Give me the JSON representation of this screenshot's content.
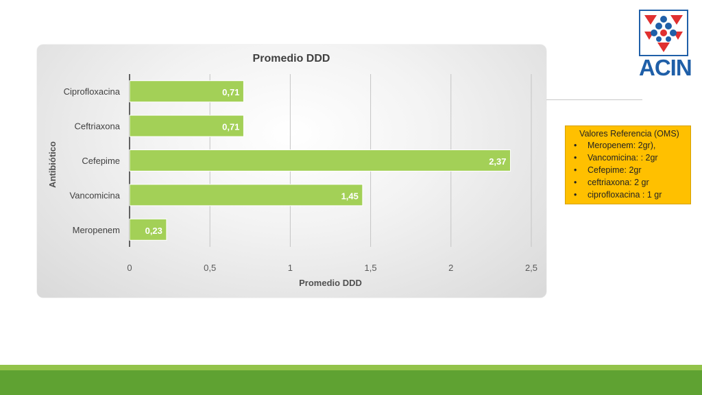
{
  "chart_data": {
    "type": "bar",
    "orientation": "horizontal",
    "title": "Promedio DDD",
    "xlabel": "Promedio DDD",
    "ylabel": "Antibiótico",
    "categories": [
      "Meropenem",
      "Vancomicina",
      "Cefepime",
      "Ceftriaxona",
      "Ciprofloxacina"
    ],
    "values": [
      0.23,
      1.45,
      2.37,
      0.71,
      0.71
    ],
    "data_labels": [
      "0,23",
      "1,45",
      "2,37",
      "0,71",
      "0,71"
    ],
    "xlim": [
      0,
      2.5
    ],
    "x_ticks": [
      "0",
      "0,5",
      "1",
      "1,5",
      "2",
      "2,5"
    ],
    "x_tick_values": [
      0,
      0.5,
      1,
      1.5,
      2,
      2.5
    ],
    "grid": true,
    "legend": "none",
    "bar_color": "#a3d057"
  },
  "reference": {
    "title": "Valores Referencia (OMS)",
    "items": [
      "Meropenem: 2gr),",
      "Vancomicina: : 2gr",
      "Cefepime: 2gr",
      "ceftriaxona: 2 gr",
      "ciprofloxacina : 1 gr"
    ]
  },
  "logo": {
    "text": "ACIN"
  },
  "colors": {
    "bar": "#a3d057",
    "reference_box": "#ffc000",
    "logo_blue": "#1f5fa8",
    "logo_red": "#e03030",
    "footer_green": "#5fa232"
  }
}
